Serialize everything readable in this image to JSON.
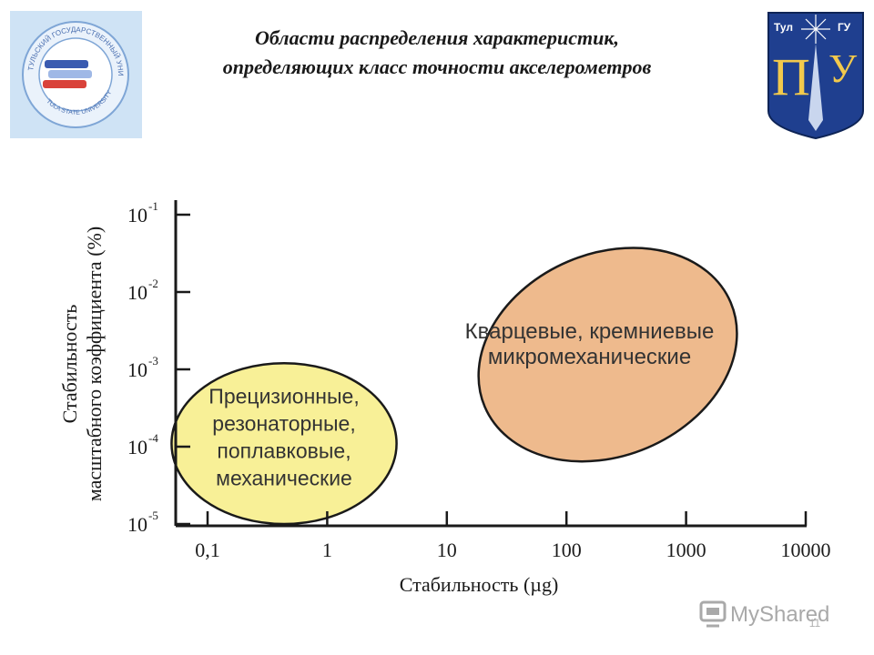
{
  "header": {
    "title_line1": "Области распределения характеристик,",
    "title_line2": "определяющих класс точности акселерометров"
  },
  "logos": {
    "left": "tula-state-university-seal",
    "left_text": "ТУЛЬСКИЙ ГОСУДАРСТВЕННЫЙ УНИВЕРСИТЕТ · TULA STATE UNIVERSITY",
    "right": "tula-gu-coat-of-arms",
    "right_text": [
      "Тул",
      "ГУ",
      "П",
      "У"
    ]
  },
  "colors": {
    "mechanical_fill": "#f7ef8f",
    "quartz_fill": "#eeba8d",
    "outline": "#1a1a1a"
  },
  "chart_data": {
    "type": "area",
    "title": "",
    "xlabel": "Стабильность (µg)",
    "ylabel_line1": "Стабильность",
    "ylabel_line2": "масштабного коэффициента (%)",
    "x_scale": "log",
    "y_scale": "log",
    "x_ticks": [
      {
        "value": 0.1,
        "label": "0,1"
      },
      {
        "value": 1,
        "label": "1"
      },
      {
        "value": 10,
        "label": "10"
      },
      {
        "value": 100,
        "label": "100"
      },
      {
        "value": 1000,
        "label": "1000"
      },
      {
        "value": 10000,
        "label": "10000"
      }
    ],
    "y_ticks": [
      {
        "value": 0.1,
        "mantissa": "10",
        "exponent": "-1"
      },
      {
        "value": 0.01,
        "mantissa": "10",
        "exponent": "-2"
      },
      {
        "value": 0.001,
        "mantissa": "10",
        "exponent": "-3"
      },
      {
        "value": 0.0001,
        "mantissa": "10",
        "exponent": "-4"
      },
      {
        "value": 1e-05,
        "mantissa": "10",
        "exponent": "-5"
      }
    ],
    "xlim": [
      0.1,
      10000
    ],
    "ylim": [
      1e-05,
      0.1
    ],
    "grid": false,
    "regions": [
      {
        "label_lines": [
          "Кварцевые, кремниевые",
          "микромеханические"
        ],
        "x_range": [
          3.5,
          14000
        ],
        "y_range": [
          1.2e-05,
          0.2
        ],
        "angle_deg": -23,
        "color": "#eeba8d"
      },
      {
        "label_lines": [
          "Прецизионные,",
          "резонаторные,",
          "поплавковые,",
          "механические"
        ],
        "x_range": [
          0.05,
          3.8
        ],
        "y_range": [
          1e-05,
          0.0012
        ],
        "angle_deg": 0,
        "color": "#f7ef8f"
      }
    ]
  },
  "footer": {
    "brand": "MyShared",
    "page_number": "11"
  }
}
